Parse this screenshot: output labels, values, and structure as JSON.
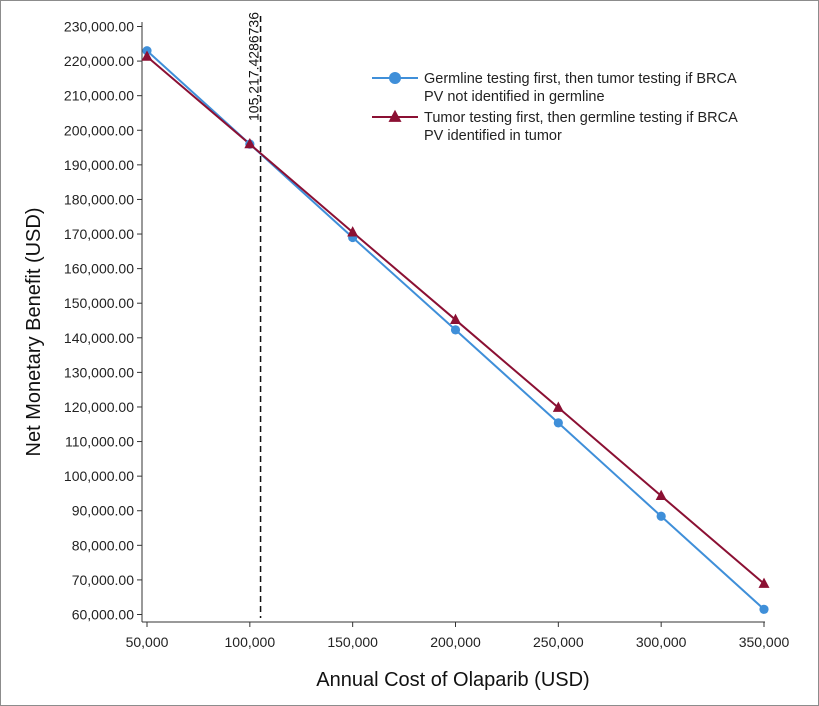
{
  "chart_data": {
    "type": "line",
    "xlabel": "Annual Cost of Olaparib (USD)",
    "ylabel": "Net Monetary Benefit (USD)",
    "x": [
      50000,
      100000,
      150000,
      200000,
      250000,
      300000,
      350000
    ],
    "x_tick_labels": [
      "50,000",
      "100,000",
      "150,000",
      "200,000",
      "250,000",
      "300,000",
      "350,000"
    ],
    "xlim": [
      50000,
      350000
    ],
    "ylim": [
      60000,
      230000
    ],
    "y_ticks": [
      60000,
      70000,
      80000,
      90000,
      100000,
      110000,
      120000,
      130000,
      140000,
      150000,
      160000,
      170000,
      180000,
      190000,
      200000,
      210000,
      220000,
      230000
    ],
    "y_tick_labels": [
      "60,000.00",
      "70,000.00",
      "80,000.00",
      "90,000.00",
      "100,000.00",
      "110,000.00",
      "120,000.00",
      "130,000.00",
      "140,000.00",
      "150,000.00",
      "160,000.00",
      "170,000.00",
      "180,000.00",
      "190,000.00",
      "200,000.00",
      "210,000.00",
      "220,000.00",
      "230,000.00"
    ],
    "series": [
      {
        "name_lines": [
          "Germline testing first, then tumor testing if BRCA",
          "PV not identified in germline"
        ],
        "color": "#3f8fd9",
        "marker": "circle",
        "values": [
          223000,
          196000,
          169000,
          142300,
          115400,
          88400,
          61500
        ]
      },
      {
        "name_lines": [
          "Tumor testing first, then germline testing if BRCA",
          "PV identified in tumor"
        ],
        "color": "#8b1033",
        "marker": "triangle",
        "values": [
          221300,
          196000,
          170500,
          145200,
          119800,
          94300,
          68900
        ]
      }
    ],
    "annotation": {
      "x": 105217.4286736,
      "label": "105,217.4286736",
      "style": "dashed"
    },
    "grid": false,
    "legend_position": "top-right"
  }
}
